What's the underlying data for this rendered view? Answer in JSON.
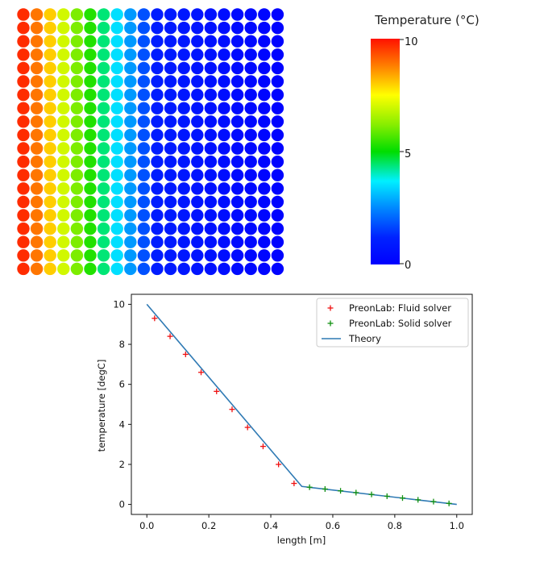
{
  "colorbar": {
    "title": "Temperature (°C)",
    "tick_max": "10",
    "tick_mid": "5",
    "tick_min": "0"
  },
  "particles": {
    "columns": 20,
    "rows": 20,
    "column_temperatures": [
      9.7,
      8.9,
      8.0,
      7.0,
      6.1,
      5.3,
      4.4,
      3.5,
      2.7,
      1.8,
      1.0,
      0.9,
      0.8,
      0.7,
      0.6,
      0.5,
      0.4,
      0.3,
      0.2,
      0.1
    ]
  },
  "chart_data": {
    "type": "line",
    "xlabel": "length [m]",
    "ylabel": "temperature [degC]",
    "xlim": [
      -0.05,
      1.05
    ],
    "ylim": [
      -0.5,
      10.5
    ],
    "xticks": [
      "0.0",
      "0.2",
      "0.4",
      "0.6",
      "0.8",
      "1.0"
    ],
    "xtick_values": [
      0.0,
      0.2,
      0.4,
      0.6,
      0.8,
      1.0
    ],
    "yticks": [
      "0",
      "2",
      "4",
      "6",
      "8",
      "10"
    ],
    "ytick_values": [
      0,
      2,
      4,
      6,
      8,
      10
    ],
    "legend_position": "upper right",
    "series": [
      {
        "name": "PreonLab: Fluid solver",
        "kind": "scatter",
        "marker": "+",
        "color": "#ee1111",
        "x": [
          0.025,
          0.075,
          0.125,
          0.175,
          0.225,
          0.275,
          0.325,
          0.375,
          0.425,
          0.475
        ],
        "y": [
          9.3,
          8.4,
          7.5,
          6.6,
          5.65,
          4.75,
          3.85,
          2.9,
          2.0,
          1.05
        ]
      },
      {
        "name": "PreonLab: Solid solver",
        "kind": "scatter",
        "marker": "+",
        "color": "#109010",
        "x": [
          0.525,
          0.575,
          0.625,
          0.675,
          0.725,
          0.775,
          0.825,
          0.875,
          0.925,
          0.975
        ],
        "y": [
          0.86,
          0.77,
          0.68,
          0.59,
          0.5,
          0.41,
          0.32,
          0.23,
          0.14,
          0.05
        ]
      },
      {
        "name": "Theory",
        "kind": "line",
        "color": "#2f7ab4",
        "x": [
          0.0,
          0.5,
          1.0
        ],
        "y": [
          10.0,
          0.9,
          0.0
        ]
      }
    ]
  }
}
